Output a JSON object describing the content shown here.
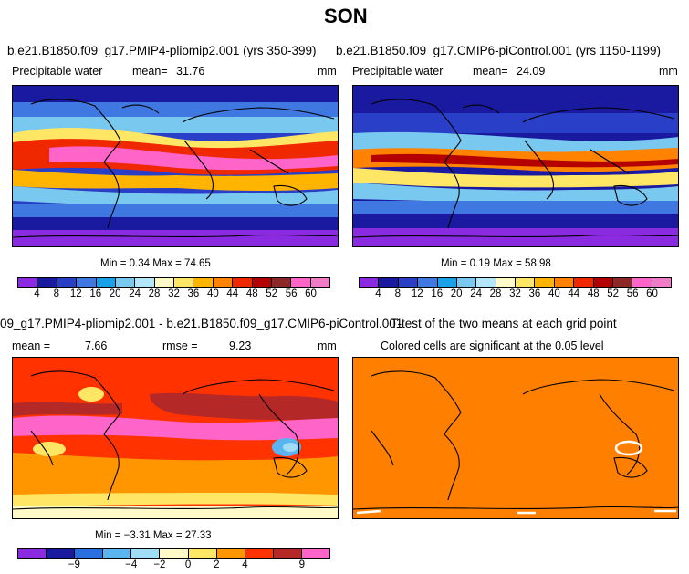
{
  "figure": {
    "title": "SON"
  },
  "panels": [
    {
      "title": "b.e21.B1850.f09_g17.PMIP4-pliomip2.001 (yrs 350-399)",
      "variable": "Precipitable water",
      "mean_label": "mean=",
      "mean_value": "31.76",
      "units": "mm",
      "minmax": "Min =   0.34 Max =  74.65",
      "colorbar_labels": [
        "4",
        "8",
        "12",
        "16",
        "20",
        "24",
        "28",
        "32",
        "36",
        "40",
        "44",
        "48",
        "52",
        "56",
        "60"
      ]
    },
    {
      "title": "b.e21.B1850.f09_g17.CMIP6-piControl.001 (yrs 1150-1199)",
      "variable": "Precipitable water",
      "mean_label": "mean=",
      "mean_value": "24.09",
      "units": "mm",
      "minmax": "Min =   0.19 Max =  58.98",
      "colorbar_labels": [
        "4",
        "8",
        "12",
        "16",
        "20",
        "24",
        "28",
        "32",
        "36",
        "40",
        "44",
        "48",
        "52",
        "56",
        "60"
      ]
    },
    {
      "title": "09_g17.PMIP4-pliomip2.001 - b.e21.B1850.f09_g17.CMIP6-piControl.001",
      "mean_label": "mean =",
      "mean_value": "7.66",
      "rmse_label": "rmse =",
      "rmse_value": "9.23",
      "units": "mm",
      "minmax": "Min =  −3.31 Max =  27.33",
      "colorbar_labels": [
        "−9",
        "−4",
        "−2",
        "0",
        "2",
        "4",
        "9"
      ]
    },
    {
      "title": "T-test of the two means at each grid point",
      "subtitle": "Colored cells are significant at the 0.05 level"
    }
  ],
  "colors": {
    "abs_scale": [
      "#8a2be2",
      "#1a1aa0",
      "#2a3fc8",
      "#3f78e0",
      "#1aa0e6",
      "#78c8f0",
      "#b4e6fa",
      "#fffac8",
      "#ffe664",
      "#ffb400",
      "#ff8200",
      "#f02800",
      "#b40000",
      "#8c2828",
      "#ff64c8",
      "#f07cc8"
    ],
    "diff_scale": [
      "#8a2be2",
      "#1a1aa0",
      "#2a6fe0",
      "#5ab4f0",
      "#a0dcf5",
      "#fffac8",
      "#ffe664",
      "#ff9600",
      "#ff3200",
      "#b42828",
      "#ff64c8"
    ],
    "ttest_fill": "#ff7f00"
  }
}
